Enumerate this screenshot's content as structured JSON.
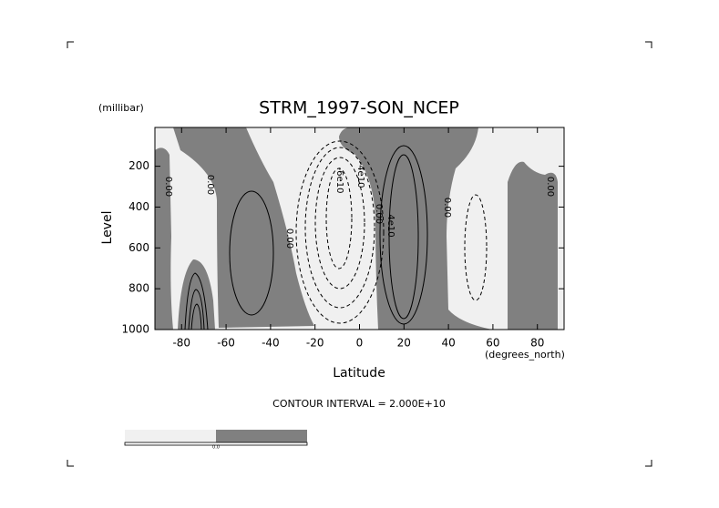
{
  "chart_data": {
    "type": "contour",
    "title": "STRM_1997-SON_NCEP",
    "y_unit": "(millibar)",
    "ylabel": "Level",
    "x_unit": "(degrees_north)",
    "xlabel": "Latitude",
    "subtitle": "CONTOUR INTERVAL = 2.000E+10",
    "xlim": [
      -92,
      92
    ],
    "xticks": [
      -80,
      -60,
      -40,
      -20,
      0,
      20,
      40,
      60,
      80
    ],
    "ylim": [
      1000,
      10
    ],
    "yticks": [
      200,
      400,
      600,
      800,
      1000
    ],
    "annotations": [
      "0.00",
      "0.00",
      "0.00",
      "-6e10",
      "-4e10",
      "0.00",
      "4e10",
      "0.00",
      "0.00"
    ],
    "colorbar_label": "0.0",
    "colors": {
      "negative": "#f0f0f0",
      "positive": "#808080"
    }
  }
}
